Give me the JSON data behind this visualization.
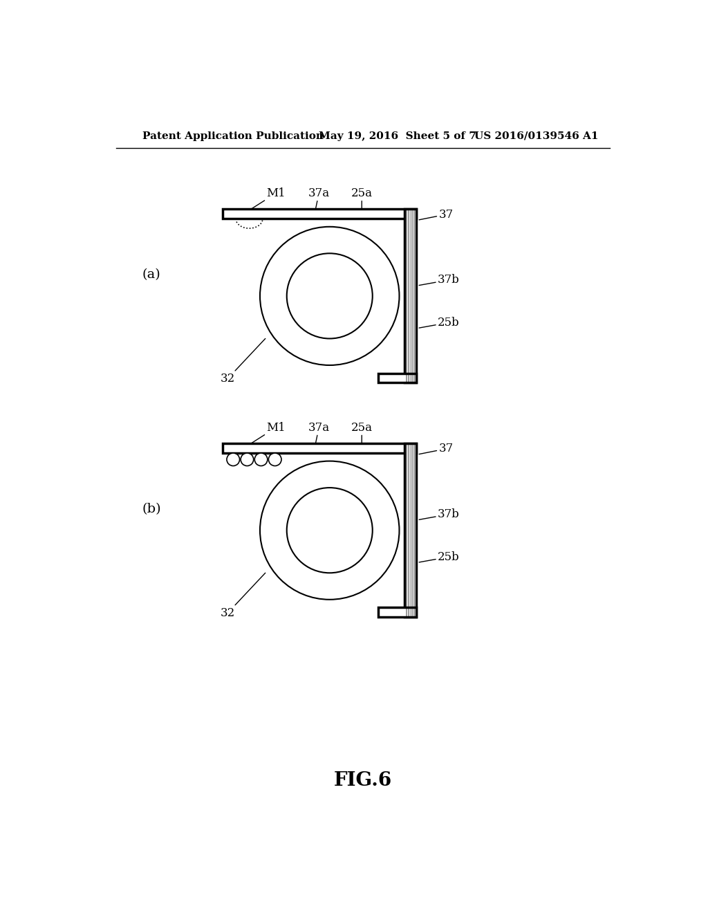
{
  "bg_color": "#ffffff",
  "line_color": "#000000",
  "header_left": "Patent Application Publication",
  "header_mid": "May 19, 2016  Sheet 5 of 7",
  "header_right": "US 2016/0139546 A1",
  "figure_title": "FIG.6",
  "panel_a_label": "(a)",
  "panel_b_label": "(b)",
  "lw_thick": 2.5,
  "lw_thin": 1.5,
  "hatch_lw": 0.4,
  "label_fontsize": 12,
  "header_fontsize": 11,
  "title_fontsize": 20
}
